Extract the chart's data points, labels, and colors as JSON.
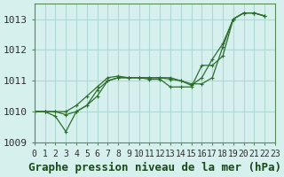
{
  "title": "",
  "xlabel": "Graphe pression niveau de la mer (hPa)",
  "background_color": "#d6f0ee",
  "grid_color": "#b0d8d4",
  "line_color": "#2d6e2d",
  "marker_color": "#2d6e2d",
  "xlim": [
    0,
    23
  ],
  "ylim": [
    1009.0,
    1013.5
  ],
  "yticks": [
    1009,
    1010,
    1011,
    1012,
    1013
  ],
  "xtick_labels": [
    "0",
    "1",
    "2",
    "3",
    "4",
    "5",
    "6",
    "7",
    "8",
    "9",
    "10",
    "11",
    "12",
    "13",
    "14",
    "15",
    "16",
    "17",
    "18",
    "19",
    "20",
    "21",
    "22",
    "23"
  ],
  "series": [
    [
      1010.0,
      1010.0,
      1010.0,
      1009.9,
      1010.0,
      1010.2,
      1010.5,
      1011.0,
      1011.1,
      1011.1,
      1011.1,
      1011.1,
      1011.1,
      1011.1,
      1011.0,
      1010.9,
      1010.9,
      1011.1,
      1012.1,
      1013.0,
      1013.2,
      1013.2,
      1013.1
    ],
    [
      1010.0,
      1010.0,
      1009.85,
      1009.35,
      1010.0,
      1010.2,
      1010.7,
      1011.0,
      1011.1,
      1011.1,
      1011.1,
      1011.05,
      1011.05,
      1010.8,
      1010.8,
      1010.8,
      1011.5,
      1011.5,
      1011.8,
      1013.0,
      1013.2,
      1013.2,
      1013.1
    ],
    [
      1010.0,
      1010.0,
      1010.0,
      1010.0,
      1010.2,
      1010.5,
      1010.8,
      1011.1,
      1011.15,
      1011.1,
      1011.1,
      1011.1,
      1011.1,
      1011.05,
      1011.0,
      1010.85,
      1011.1,
      1011.7,
      1012.2,
      1013.0,
      1013.2,
      1013.2,
      1013.1
    ]
  ],
  "font_family": "monospace",
  "xlabel_fontsize": 9,
  "ytick_fontsize": 8,
  "xtick_fontsize": 7
}
